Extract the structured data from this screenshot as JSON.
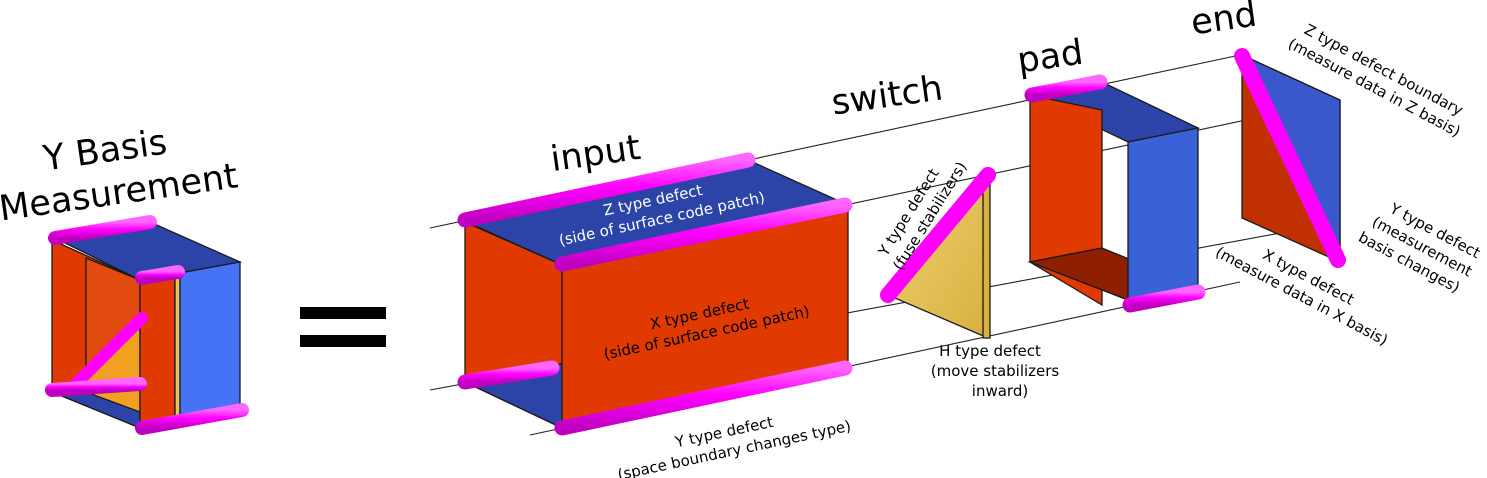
{
  "left": {
    "title_line1": "Y Basis",
    "title_line2": "Measurement"
  },
  "equals": "=",
  "stages": {
    "input": "input",
    "switch": "switch",
    "pad": "pad",
    "end": "end"
  },
  "labels": {
    "z_defect_line1": "Z type defect",
    "z_defect_line2": "(side of surface code patch)",
    "x_defect_line1": "X type defect",
    "x_defect_line2": "(side of surface code patch)",
    "y_defect_bottom_line1": "Y type defect",
    "y_defect_bottom_line2": "(space boundary changes type)",
    "y_defect_fuse_line1": "Y type defect",
    "y_defect_fuse_line2": "(fuse stabilizers)",
    "h_defect_line1": "H type defect",
    "h_defect_line2": "(move stabilizers",
    "h_defect_line3": "inward)",
    "z_boundary_line1": "Z type defect boundary",
    "z_boundary_line2": "(measure data in Z basis)",
    "y_measure_line1": "Y type defect",
    "y_measure_line2": "(measurement",
    "y_measure_line3": "basis changes)",
    "x_measure_line1": "X type defect",
    "x_measure_line2": "(measure data in X basis)"
  },
  "colors": {
    "red_face": "#e03a00",
    "dark_red_face": "#8e1f00",
    "blue_face": "#2c44a8",
    "light_blue_face": "#4672f5",
    "yellow_face": "#e6c35a",
    "magenta_tube": "#ff00ff",
    "magenta_dark": "#b000b0"
  }
}
